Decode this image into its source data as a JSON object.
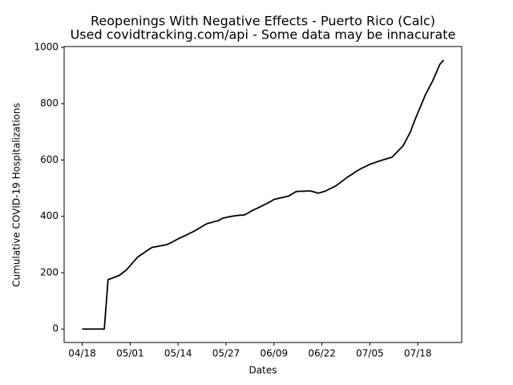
{
  "chart_data": {
    "type": "line",
    "title": "Reopenings With Negative Effects - Puerto Rico (Calc)",
    "subtitle": "Used covidtracking.com/api - Some data may be innacurate",
    "x_label": "Dates",
    "y_label": "Cumulative COVID-19 Hospitalizations",
    "categories": [
      "04/18",
      null,
      null,
      null,
      null,
      null,
      null,
      null,
      null,
      null,
      null,
      null,
      null,
      "05/01",
      null,
      null,
      null,
      null,
      null,
      null,
      null,
      null,
      null,
      null,
      null,
      null,
      "05/14",
      null,
      null,
      null,
      null,
      null,
      null,
      null,
      null,
      null,
      null,
      null,
      null,
      "05/27",
      null,
      null,
      null,
      null,
      null,
      null,
      null,
      null,
      null,
      null,
      null,
      null,
      "06/09",
      null,
      null,
      null,
      null,
      null,
      null,
      null,
      null,
      null,
      null,
      null,
      null,
      "06/22",
      null,
      null,
      null,
      null,
      null,
      null,
      null,
      null,
      null,
      null,
      null,
      null,
      "07/05",
      null,
      null,
      null,
      null,
      null,
      null,
      null,
      null,
      null,
      null,
      null,
      null,
      "07/18",
      null,
      null,
      null,
      null,
      null,
      null,
      null
    ],
    "values": [
      0,
      0,
      0,
      0,
      0,
      0,
      0,
      175,
      180,
      185,
      190,
      200,
      210,
      225,
      240,
      255,
      264,
      273,
      282,
      290,
      292,
      295,
      297,
      300,
      306,
      313,
      320,
      326,
      332,
      339,
      345,
      352,
      360,
      368,
      375,
      378,
      382,
      385,
      393,
      396,
      399,
      401,
      403,
      404,
      405,
      412,
      420,
      426,
      432,
      439,
      445,
      452,
      460,
      463,
      466,
      469,
      472,
      480,
      488,
      489,
      489,
      490,
      490,
      486,
      482,
      486,
      490,
      497,
      503,
      510,
      520,
      530,
      540,
      548,
      557,
      565,
      572,
      578,
      585,
      589,
      594,
      598,
      602,
      606,
      610,
      623,
      637,
      650,
      675,
      700,
      735,
      767,
      798,
      830,
      855,
      880,
      910,
      940,
      955
    ],
    "color": "#000000",
    "ylim": [
      -47.75,
      1002.75
    ],
    "yticks": [
      0,
      200,
      400,
      600,
      800,
      1000
    ],
    "grid": false
  }
}
